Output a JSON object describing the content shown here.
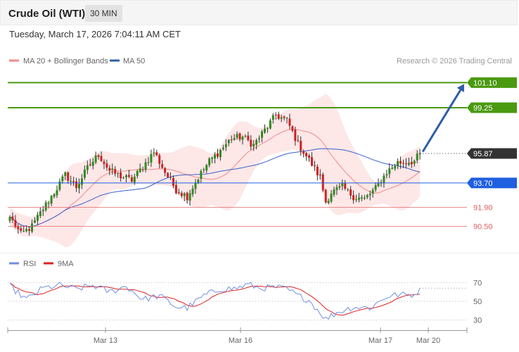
{
  "header": {
    "title": "Crude Oil (WTI)",
    "interval": "30 MIN"
  },
  "datetime": "Tuesday, March 17, 2026 7:04:11 AM CET",
  "legend": {
    "ma20": "MA 20 + Bollinger Bands",
    "ma50": "MA 50",
    "rsi": "RSI",
    "rsi_ma": "9MA"
  },
  "credit": "Research © 2026 Trading Central",
  "colors": {
    "up": "#2e8b1e",
    "down": "#cc2222",
    "bollinger": "#fde3e3",
    "ma20": "#f08a8a",
    "ma50": "#3a5fcd",
    "resistance": "#4a9a10",
    "current": "#333333",
    "pivot": "#1f5fe0",
    "support": "#e06060",
    "arrow": "#2d5ea8",
    "rsi": "#6f8fe0",
    "rsi_ma": "#dd2222"
  },
  "levels": [
    {
      "kind": "resistance",
      "value": 101.1,
      "label": "101.10"
    },
    {
      "kind": "resistance",
      "value": 99.25,
      "label": "99.25"
    },
    {
      "kind": "current",
      "value": 95.87,
      "label": "95.87"
    },
    {
      "kind": "pivot",
      "value": 93.7,
      "label": "93.70"
    },
    {
      "kind": "support",
      "value": 91.9,
      "label": "91.90"
    },
    {
      "kind": "support",
      "value": 90.5,
      "label": "90.50"
    }
  ],
  "rsi_axis": {
    "ticks": [
      "70",
      "50",
      "30"
    ],
    "range": [
      20,
      80
    ]
  },
  "x_axis": {
    "labels": [
      "Mar 13",
      "Mar 16",
      "Mar 17",
      "Mar 20"
    ]
  },
  "chart_data": {
    "type": "candlestick",
    "price_range": [
      88.5,
      102.0
    ],
    "price_anchors": [
      [
        0,
        91.2
      ],
      [
        4,
        89.9
      ],
      [
        8,
        90.5
      ],
      [
        12,
        91.8
      ],
      [
        16,
        93.0
      ],
      [
        20,
        94.3
      ],
      [
        24,
        93.4
      ],
      [
        28,
        94.8
      ],
      [
        32,
        95.8
      ],
      [
        36,
        94.6
      ],
      [
        40,
        94.2
      ],
      [
        44,
        93.9
      ],
      [
        48,
        94.9
      ],
      [
        52,
        96.0
      ],
      [
        56,
        94.5
      ],
      [
        60,
        93.2
      ],
      [
        64,
        92.7
      ],
      [
        68,
        94.1
      ],
      [
        72,
        95.3
      ],
      [
        76,
        96.1
      ],
      [
        80,
        97.0
      ],
      [
        84,
        97.1
      ],
      [
        88,
        96.5
      ],
      [
        92,
        97.6
      ],
      [
        96,
        98.7
      ],
      [
        100,
        98.3
      ],
      [
        104,
        96.6
      ],
      [
        108,
        95.4
      ],
      [
        112,
        94.1
      ],
      [
        114,
        92.3
      ],
      [
        116,
        93.0
      ],
      [
        120,
        93.4
      ],
      [
        124,
        92.7
      ],
      [
        128,
        92.5
      ],
      [
        132,
        93.3
      ],
      [
        136,
        94.5
      ],
      [
        140,
        95.2
      ],
      [
        146,
        95.3
      ],
      [
        148,
        95.9
      ]
    ],
    "ma_period_short": 20,
    "ma_period_long": 50,
    "rsi_anchors": [
      [
        0,
        66
      ],
      [
        6,
        52
      ],
      [
        12,
        64
      ],
      [
        18,
        67
      ],
      [
        24,
        63
      ],
      [
        30,
        67
      ],
      [
        36,
        60
      ],
      [
        42,
        66
      ],
      [
        48,
        52
      ],
      [
        54,
        56
      ],
      [
        60,
        44
      ],
      [
        64,
        43
      ],
      [
        70,
        56
      ],
      [
        76,
        63
      ],
      [
        82,
        64
      ],
      [
        86,
        68
      ],
      [
        90,
        64
      ],
      [
        96,
        65
      ],
      [
        100,
        63
      ],
      [
        104,
        56
      ],
      [
        108,
        51
      ],
      [
        112,
        38
      ],
      [
        114,
        31
      ],
      [
        118,
        38
      ],
      [
        124,
        44
      ],
      [
        130,
        43
      ],
      [
        136,
        55
      ],
      [
        140,
        57
      ],
      [
        146,
        57
      ],
      [
        148,
        64
      ]
    ]
  }
}
